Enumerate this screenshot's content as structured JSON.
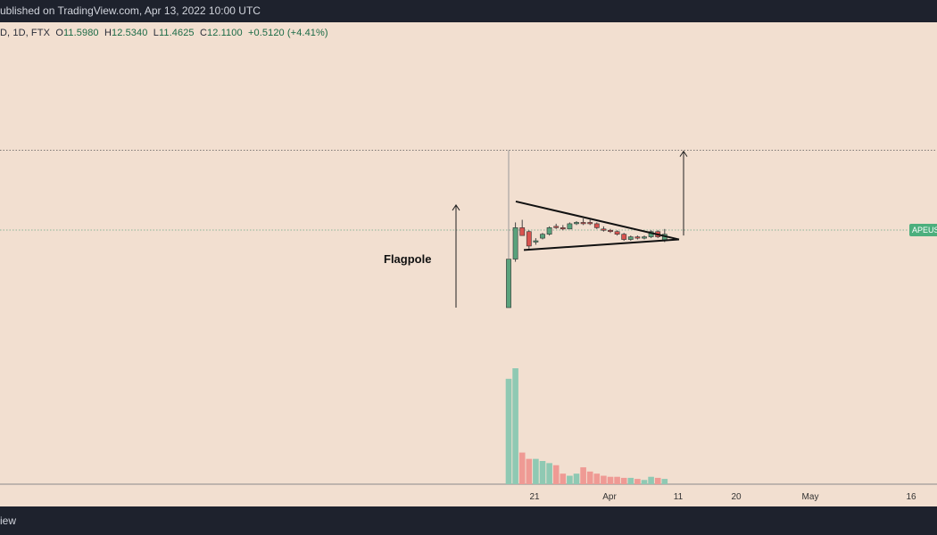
{
  "header": {
    "published_text": "ublished on TradingView.com, Apr 13, 2022 10:00 UTC"
  },
  "ohlc": {
    "symbol": "D, 1D, FTX",
    "open_label": "O",
    "open": "11.5980",
    "high_label": "H",
    "high": "12.5340",
    "low_label": "L",
    "low": "11.4625",
    "close_label": "C",
    "close": "12.1100",
    "change": "+0.5120 (+4.41%)"
  },
  "annotation": {
    "flagpole_label": "Flagpole"
  },
  "price_tag": {
    "label": "APEUS"
  },
  "footer": {
    "brand_text": "iew"
  },
  "colors": {
    "up": "#5aa27c",
    "down": "#d9534f",
    "vol_up": "#8fc9b3",
    "vol_down": "#ef9a94",
    "background": "#f2dfd0"
  },
  "chart_data": {
    "type": "candlestick",
    "x_ticks": [
      "21",
      "Apr",
      "11",
      "20",
      "May",
      "16"
    ],
    "candles": [
      {
        "o": 6.5,
        "h": 10.2,
        "l": 6.5,
        "c": 10.2,
        "v": 100
      },
      {
        "o": 10.2,
        "h": 13.0,
        "l": 10.0,
        "c": 12.6,
        "v": 110
      },
      {
        "o": 12.6,
        "h": 13.2,
        "l": 12.0,
        "c": 12.0,
        "v": 30
      },
      {
        "o": 12.3,
        "h": 12.4,
        "l": 11.0,
        "c": 11.2,
        "v": 24
      },
      {
        "o": 11.5,
        "h": 11.8,
        "l": 11.3,
        "c": 11.6,
        "v": 24
      },
      {
        "o": 11.8,
        "h": 12.2,
        "l": 11.7,
        "c": 12.1,
        "v": 22
      },
      {
        "o": 12.1,
        "h": 12.7,
        "l": 12.0,
        "c": 12.6,
        "v": 20
      },
      {
        "o": 12.7,
        "h": 12.9,
        "l": 12.5,
        "c": 12.6,
        "v": 18
      },
      {
        "o": 12.6,
        "h": 12.8,
        "l": 12.4,
        "c": 12.5,
        "v": 10
      },
      {
        "o": 12.5,
        "h": 13.0,
        "l": 12.5,
        "c": 12.9,
        "v": 8
      },
      {
        "o": 12.9,
        "h": 13.1,
        "l": 12.8,
        "c": 13.0,
        "v": 10
      },
      {
        "o": 13.0,
        "h": 13.3,
        "l": 12.8,
        "c": 12.9,
        "v": 16
      },
      {
        "o": 13.0,
        "h": 13.2,
        "l": 12.8,
        "c": 12.9,
        "v": 12
      },
      {
        "o": 12.9,
        "h": 13.0,
        "l": 12.5,
        "c": 12.6,
        "v": 10
      },
      {
        "o": 12.5,
        "h": 12.7,
        "l": 12.3,
        "c": 12.4,
        "v": 8
      },
      {
        "o": 12.4,
        "h": 12.5,
        "l": 12.2,
        "c": 12.3,
        "v": 7
      },
      {
        "o": 12.3,
        "h": 12.4,
        "l": 12.0,
        "c": 12.1,
        "v": 7
      },
      {
        "o": 12.1,
        "h": 12.2,
        "l": 11.6,
        "c": 11.7,
        "v": 6
      },
      {
        "o": 11.7,
        "h": 12.0,
        "l": 11.6,
        "c": 11.9,
        "v": 6
      },
      {
        "o": 11.9,
        "h": 12.0,
        "l": 11.7,
        "c": 11.8,
        "v": 5
      },
      {
        "o": 11.8,
        "h": 12.0,
        "l": 11.7,
        "c": 11.9,
        "v": 4
      },
      {
        "o": 11.9,
        "h": 12.4,
        "l": 11.8,
        "c": 12.3,
        "v": 7
      },
      {
        "o": 12.3,
        "h": 12.4,
        "l": 11.8,
        "c": 11.9,
        "v": 6
      },
      {
        "o": 11.6,
        "h": 12.5,
        "l": 11.5,
        "c": 12.1,
        "v": 5
      }
    ],
    "flag_top_line": [
      {
        "x": 0,
        "y": 14.6
      },
      {
        "x": 22.5,
        "y": 11.7
      }
    ],
    "flag_bottom_line": [
      {
        "x": 0.4,
        "y": 10.9
      },
      {
        "x": 22.5,
        "y": 11.7
      }
    ],
    "target_level": 18.5,
    "flagpole_arrow": {
      "y_start": 6.5,
      "y_end": 14.6
    },
    "target_arrow": {
      "y_start": 12.0,
      "y_end": 18.5
    },
    "candle_spacing_px": 7.6,
    "y_scale_px_per_unit": 14.7
  }
}
